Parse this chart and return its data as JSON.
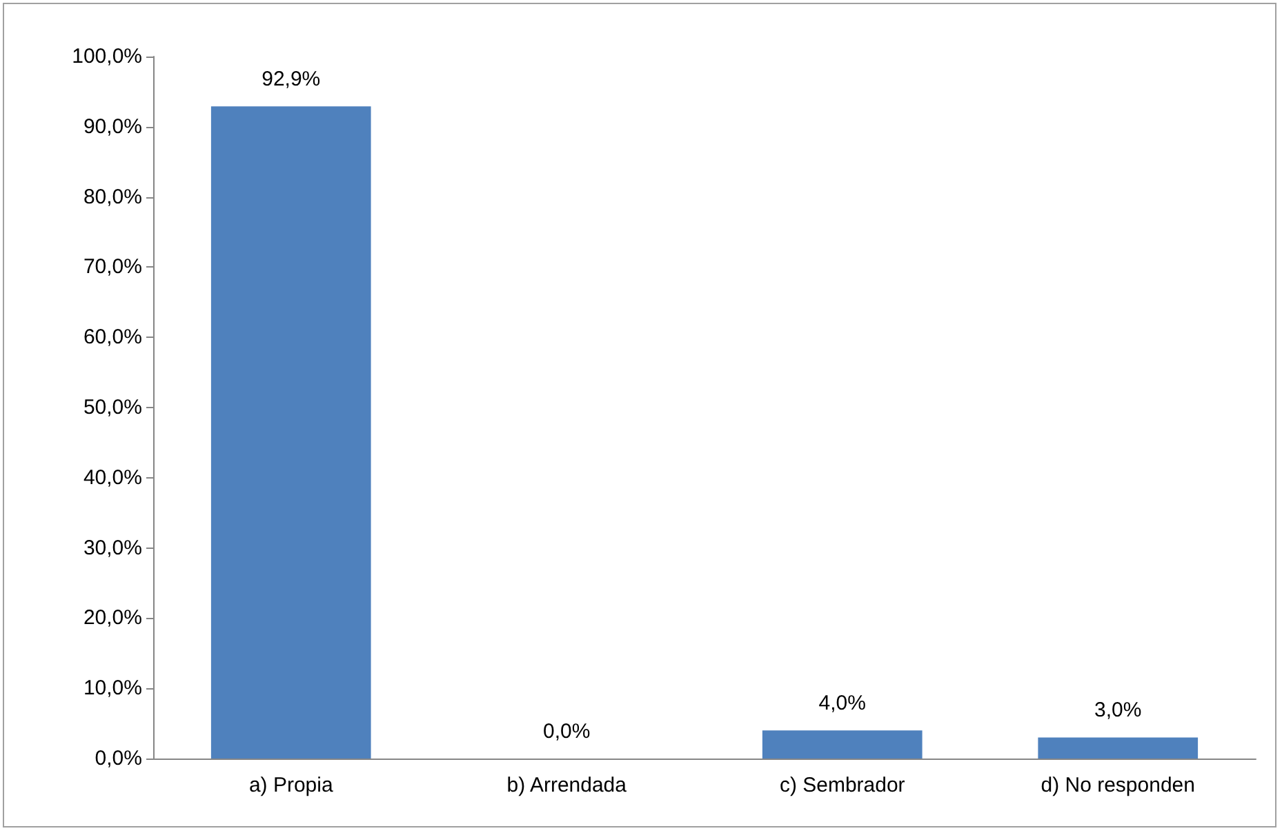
{
  "chart_data": {
    "type": "bar",
    "categories": [
      "a) Propia",
      "b) Arrendada",
      "c) Sembrador",
      "d) No responden"
    ],
    "values": [
      92.9,
      0,
      4,
      3
    ],
    "color": "#4f81bd",
    "value_labels": [
      "92,9%",
      "0,0%",
      "4,0%",
      "3,0%"
    ],
    "ylim": [
      0,
      100
    ],
    "yticks": [
      {
        "value": 0,
        "label": "0,0%"
      },
      {
        "value": 10,
        "label": "10,0%"
      },
      {
        "value": 20,
        "label": "20,0%"
      },
      {
        "value": 30,
        "label": "30,0%"
      },
      {
        "value": 40,
        "label": "40,0%"
      },
      {
        "value": 50,
        "label": "50,0%"
      },
      {
        "value": 60,
        "label": "60,0%"
      },
      {
        "value": 70,
        "label": "70,0%"
      },
      {
        "value": 80,
        "label": "80,0%"
      },
      {
        "value": 90,
        "label": "90,0%"
      },
      {
        "value": 100,
        "label": "100,0%"
      }
    ],
    "grid": false
  }
}
